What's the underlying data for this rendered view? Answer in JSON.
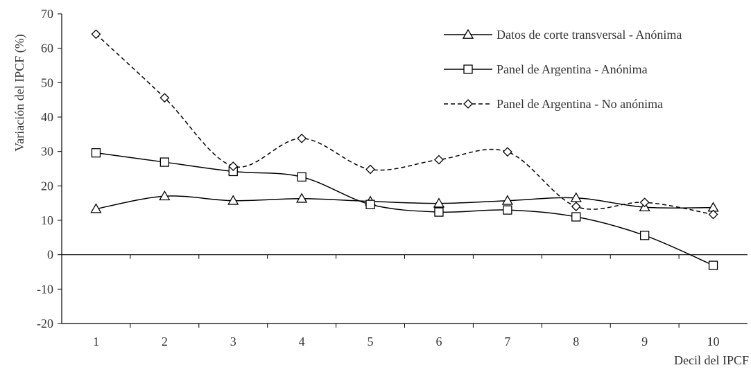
{
  "chart_data": {
    "type": "line",
    "xlabel": "Decil del IPCF",
    "ylabel": "Variación del IPCF (%)",
    "categories": [
      "1",
      "2",
      "3",
      "4",
      "5",
      "6",
      "7",
      "8",
      "9",
      "10"
    ],
    "x": [
      1,
      2,
      3,
      4,
      5,
      6,
      7,
      8,
      9,
      10
    ],
    "ylim": [
      -20,
      70
    ],
    "yticks": [
      -20,
      -10,
      0,
      10,
      20,
      30,
      40,
      50,
      60,
      70
    ],
    "grid": false,
    "legend_position": "top-right",
    "series": [
      {
        "name": "Datos de corte transversal - Anónima",
        "marker": "triangle",
        "dash": "solid",
        "color": "#000000",
        "values": [
          13.3,
          17.0,
          15.7,
          16.3,
          15.5,
          14.9,
          15.7,
          16.5,
          13.8,
          13.7
        ]
      },
      {
        "name": "Panel de Argentina - Anónima",
        "marker": "square",
        "dash": "solid",
        "color": "#000000",
        "values": [
          29.6,
          26.9,
          24.2,
          22.6,
          14.6,
          12.4,
          13.0,
          11.0,
          5.6,
          -3.1
        ]
      },
      {
        "name": "Panel de Argentina - No anónima",
        "marker": "diamond",
        "dash": "dashed",
        "color": "#000000",
        "values": [
          64.1,
          45.6,
          25.7,
          33.8,
          24.8,
          27.6,
          29.9,
          14.0,
          15.2,
          11.7
        ]
      }
    ]
  }
}
